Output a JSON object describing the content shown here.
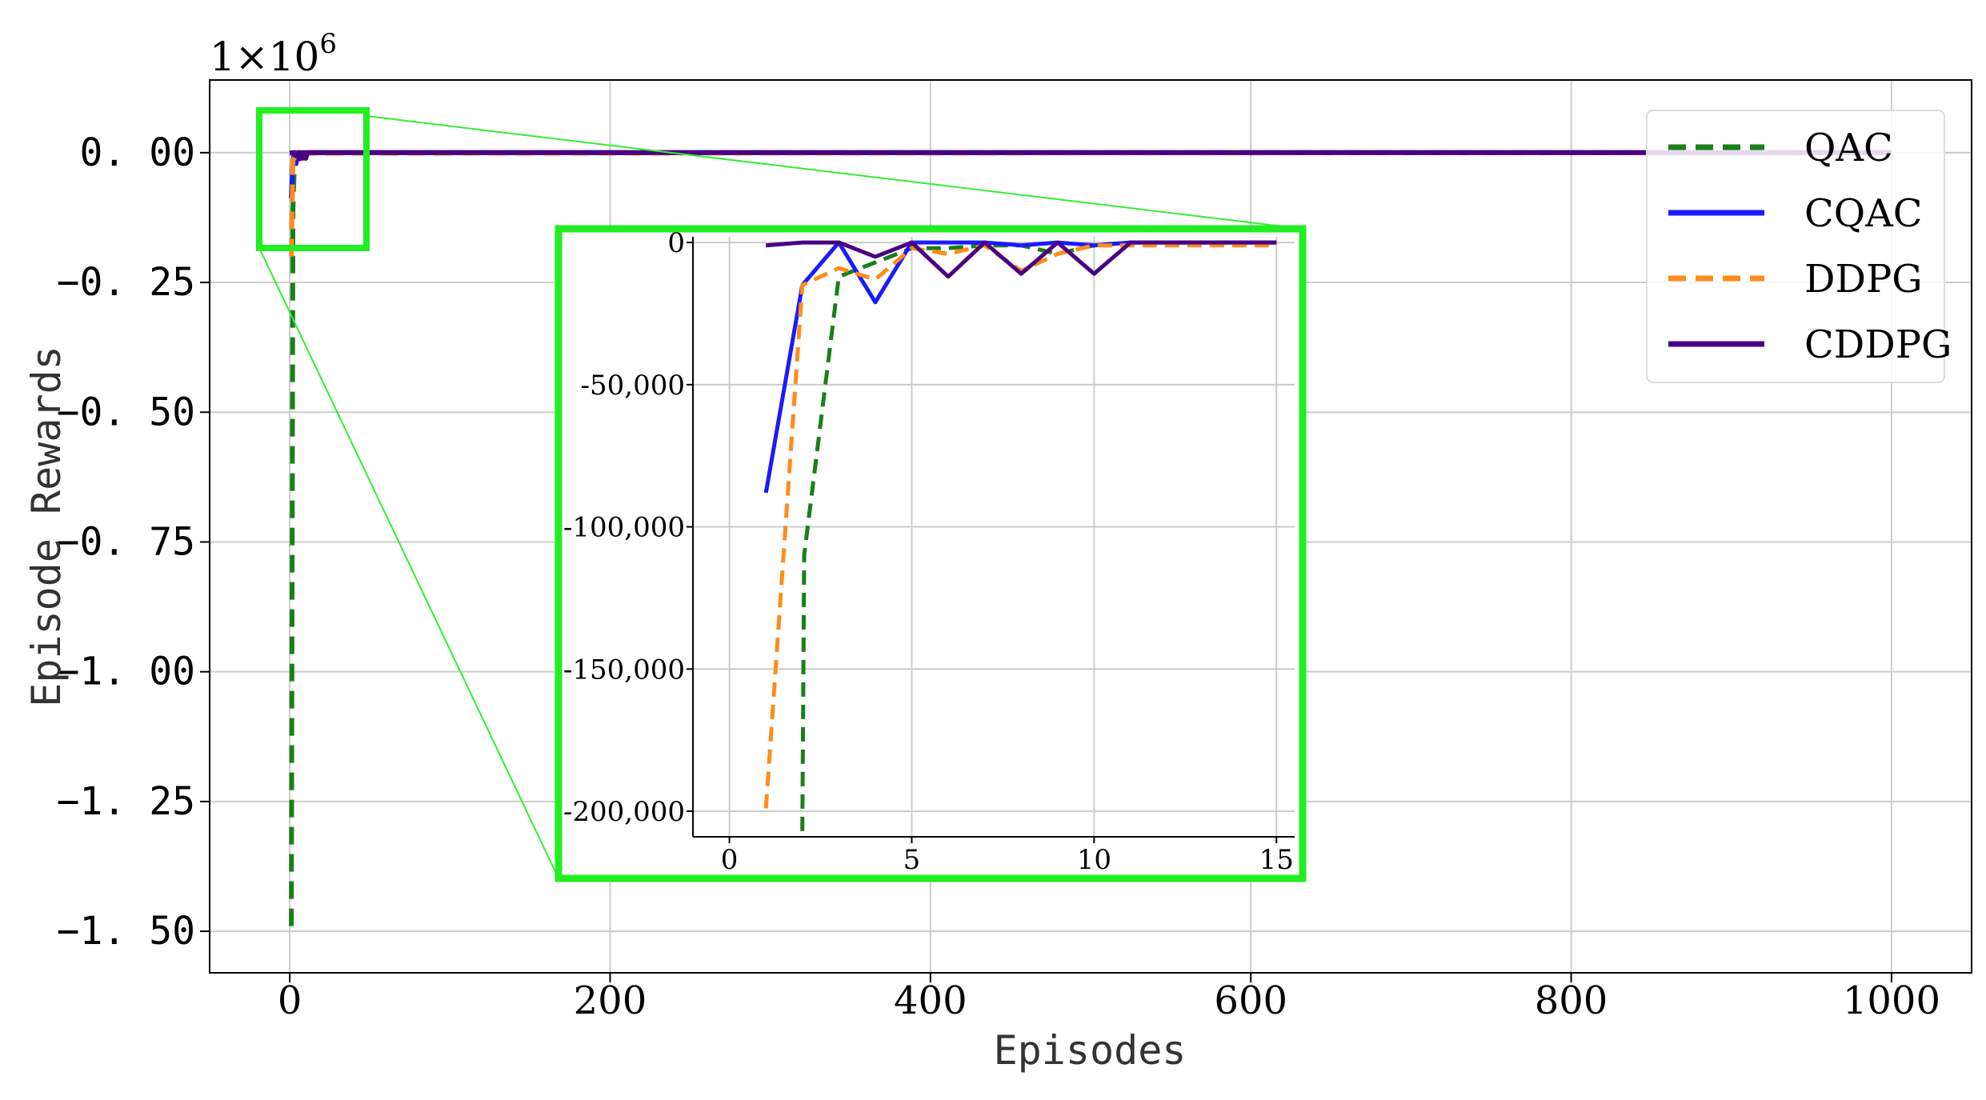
{
  "chart_data": [
    {
      "id": "main",
      "type": "line",
      "title": "",
      "xlabel": "Episodes",
      "ylabel": "Episode Rewards",
      "offset_label": "1×10",
      "offset_exponent": "6",
      "xlim": [
        -50,
        1050
      ],
      "ylim": [
        -1.58,
        0.14
      ],
      "grid": true,
      "xticks": [
        0,
        200,
        400,
        600,
        800,
        1000
      ],
      "xtick_labels": [
        "0",
        "200",
        "400",
        "600",
        "800",
        "1000"
      ],
      "yticks": [
        0.0,
        -0.25,
        -0.5,
        -0.75,
        -1.0,
        -1.25,
        -1.5
      ],
      "ytick_labels": [
        "0. 00",
        "−0. 25",
        "−0. 50",
        "−0. 75",
        "−1. 00",
        "−1. 25",
        "−1. 50"
      ],
      "legend_position": "top-right",
      "series": [
        {
          "name": "QAC",
          "color": "#1a7f1a",
          "dash": "dashed",
          "x": [
            1,
            2,
            3,
            4,
            5,
            8,
            15,
            1000
          ],
          "y": [
            -1.49,
            -0.11,
            -0.012,
            -0.004,
            -0.001,
            -0.001,
            0.0,
            0.0
          ]
        },
        {
          "name": "CQAC",
          "color": "#1a1aff",
          "dash": "solid",
          "x": [
            1,
            2,
            3,
            4,
            5,
            15,
            1000
          ],
          "y": [
            -0.088,
            -0.015,
            0.0,
            -0.021,
            0.0,
            0.0,
            0.0
          ]
        },
        {
          "name": "DDPG",
          "color": "#ff8c1a",
          "dash": "dashed",
          "x": [
            1,
            2,
            3,
            4,
            5,
            15,
            1000
          ],
          "y": [
            -0.2,
            -0.015,
            -0.009,
            -0.013,
            -0.002,
            -0.001,
            0.0
          ]
        },
        {
          "name": "CDDPG",
          "color": "#4b0082",
          "dash": "solid",
          "x": [
            0,
            2,
            3,
            4,
            5,
            6,
            7,
            8,
            9,
            10,
            11,
            15,
            1000
          ],
          "y": [
            -0.001,
            0.0,
            0.0,
            -0.005,
            0.0,
            -0.012,
            0.0,
            -0.011,
            0.0,
            -0.011,
            0.0,
            0.0,
            0.0
          ]
        }
      ]
    },
    {
      "id": "inset",
      "type": "line",
      "title": "",
      "xlabel": "",
      "ylabel": "",
      "xlim": [
        -1,
        15.5
      ],
      "ylim": [
        -209000,
        2000
      ],
      "grid": true,
      "xticks": [
        0,
        5,
        10,
        15
      ],
      "xtick_labels": [
        "0",
        "5",
        "10",
        "15"
      ],
      "yticks": [
        0,
        -50000,
        -100000,
        -150000,
        -200000
      ],
      "ytick_labels": [
        "0",
        "-50,000",
        "-100,000",
        "-150,000",
        "-200,000"
      ],
      "series": [
        {
          "name": "QAC",
          "color": "#1a7f1a",
          "dash": "dashed",
          "x": [
            2,
            2.05,
            3,
            4,
            5,
            6,
            7,
            8,
            9,
            10,
            11,
            12,
            13,
            14,
            15
          ],
          "y": [
            -207000,
            -110000,
            -12000,
            -7000,
            -2000,
            -2000,
            -1000,
            -1000,
            -4000,
            -1000,
            0,
            0,
            0,
            0,
            0
          ]
        },
        {
          "name": "CQAC",
          "color": "#1a1aff",
          "dash": "solid",
          "x": [
            1,
            2,
            3,
            4,
            5,
            6,
            7,
            8,
            9,
            10,
            11,
            12,
            13,
            14,
            15
          ],
          "y": [
            -88000,
            -15000,
            0,
            -21000,
            0,
            0,
            0,
            -1000,
            0,
            -1000,
            0,
            0,
            0,
            0,
            0
          ]
        },
        {
          "name": "DDPG",
          "color": "#ff8c1a",
          "dash": "dashed",
          "x": [
            1,
            2,
            3,
            4,
            5,
            6,
            7,
            8,
            9,
            10,
            11,
            12,
            13,
            14,
            15
          ],
          "y": [
            -199000,
            -15000,
            -9000,
            -13000,
            -2000,
            -4000,
            -1000,
            -10000,
            -4000,
            -1000,
            -1000,
            -1000,
            -1000,
            -1000,
            -1000
          ]
        },
        {
          "name": "CDDPG",
          "color": "#4b0082",
          "dash": "solid",
          "x": [
            1,
            2,
            3,
            4,
            5,
            6,
            7,
            8,
            9,
            10,
            11,
            12,
            13,
            14,
            15
          ],
          "y": [
            -1000,
            0,
            0,
            -5000,
            0,
            -12000,
            0,
            -11000,
            0,
            -11000,
            0,
            0,
            0,
            0,
            0
          ]
        }
      ]
    }
  ]
}
